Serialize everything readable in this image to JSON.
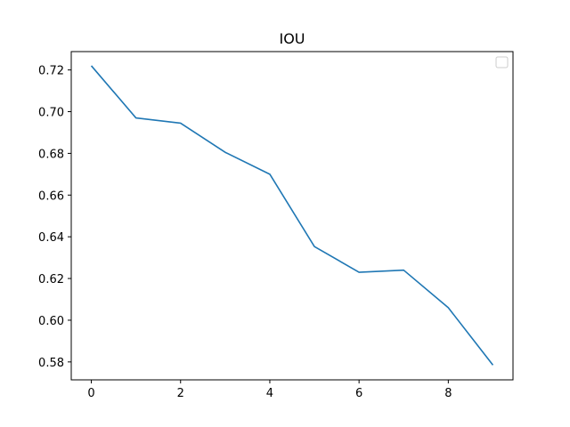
{
  "chart_data": {
    "type": "line",
    "title": "IOU",
    "xlabel": "",
    "ylabel": "",
    "x": [
      0,
      1,
      2,
      3,
      4,
      5,
      6,
      7,
      8,
      9
    ],
    "series": [
      {
        "values": [
          0.722,
          0.697,
          0.6945,
          0.6805,
          0.67,
          0.6353,
          0.623,
          0.624,
          0.606,
          0.5785
        ],
        "color": "#1f77b4"
      }
    ],
    "xlim": [
      -0.45,
      9.45
    ],
    "ylim": [
      0.5714,
      0.7288
    ],
    "xticks": [
      0,
      2,
      4,
      6,
      8
    ],
    "xtick_labels": [
      "0",
      "2",
      "4",
      "6",
      "8"
    ],
    "yticks": [
      0.58,
      0.6,
      0.62,
      0.64,
      0.66,
      0.68,
      0.7,
      0.72
    ],
    "ytick_labels": [
      "0.58",
      "0.60",
      "0.62",
      "0.64",
      "0.66",
      "0.68",
      "0.70",
      "0.72"
    ],
    "grid": false,
    "legend": {
      "placement": "top-right",
      "entries": []
    }
  }
}
